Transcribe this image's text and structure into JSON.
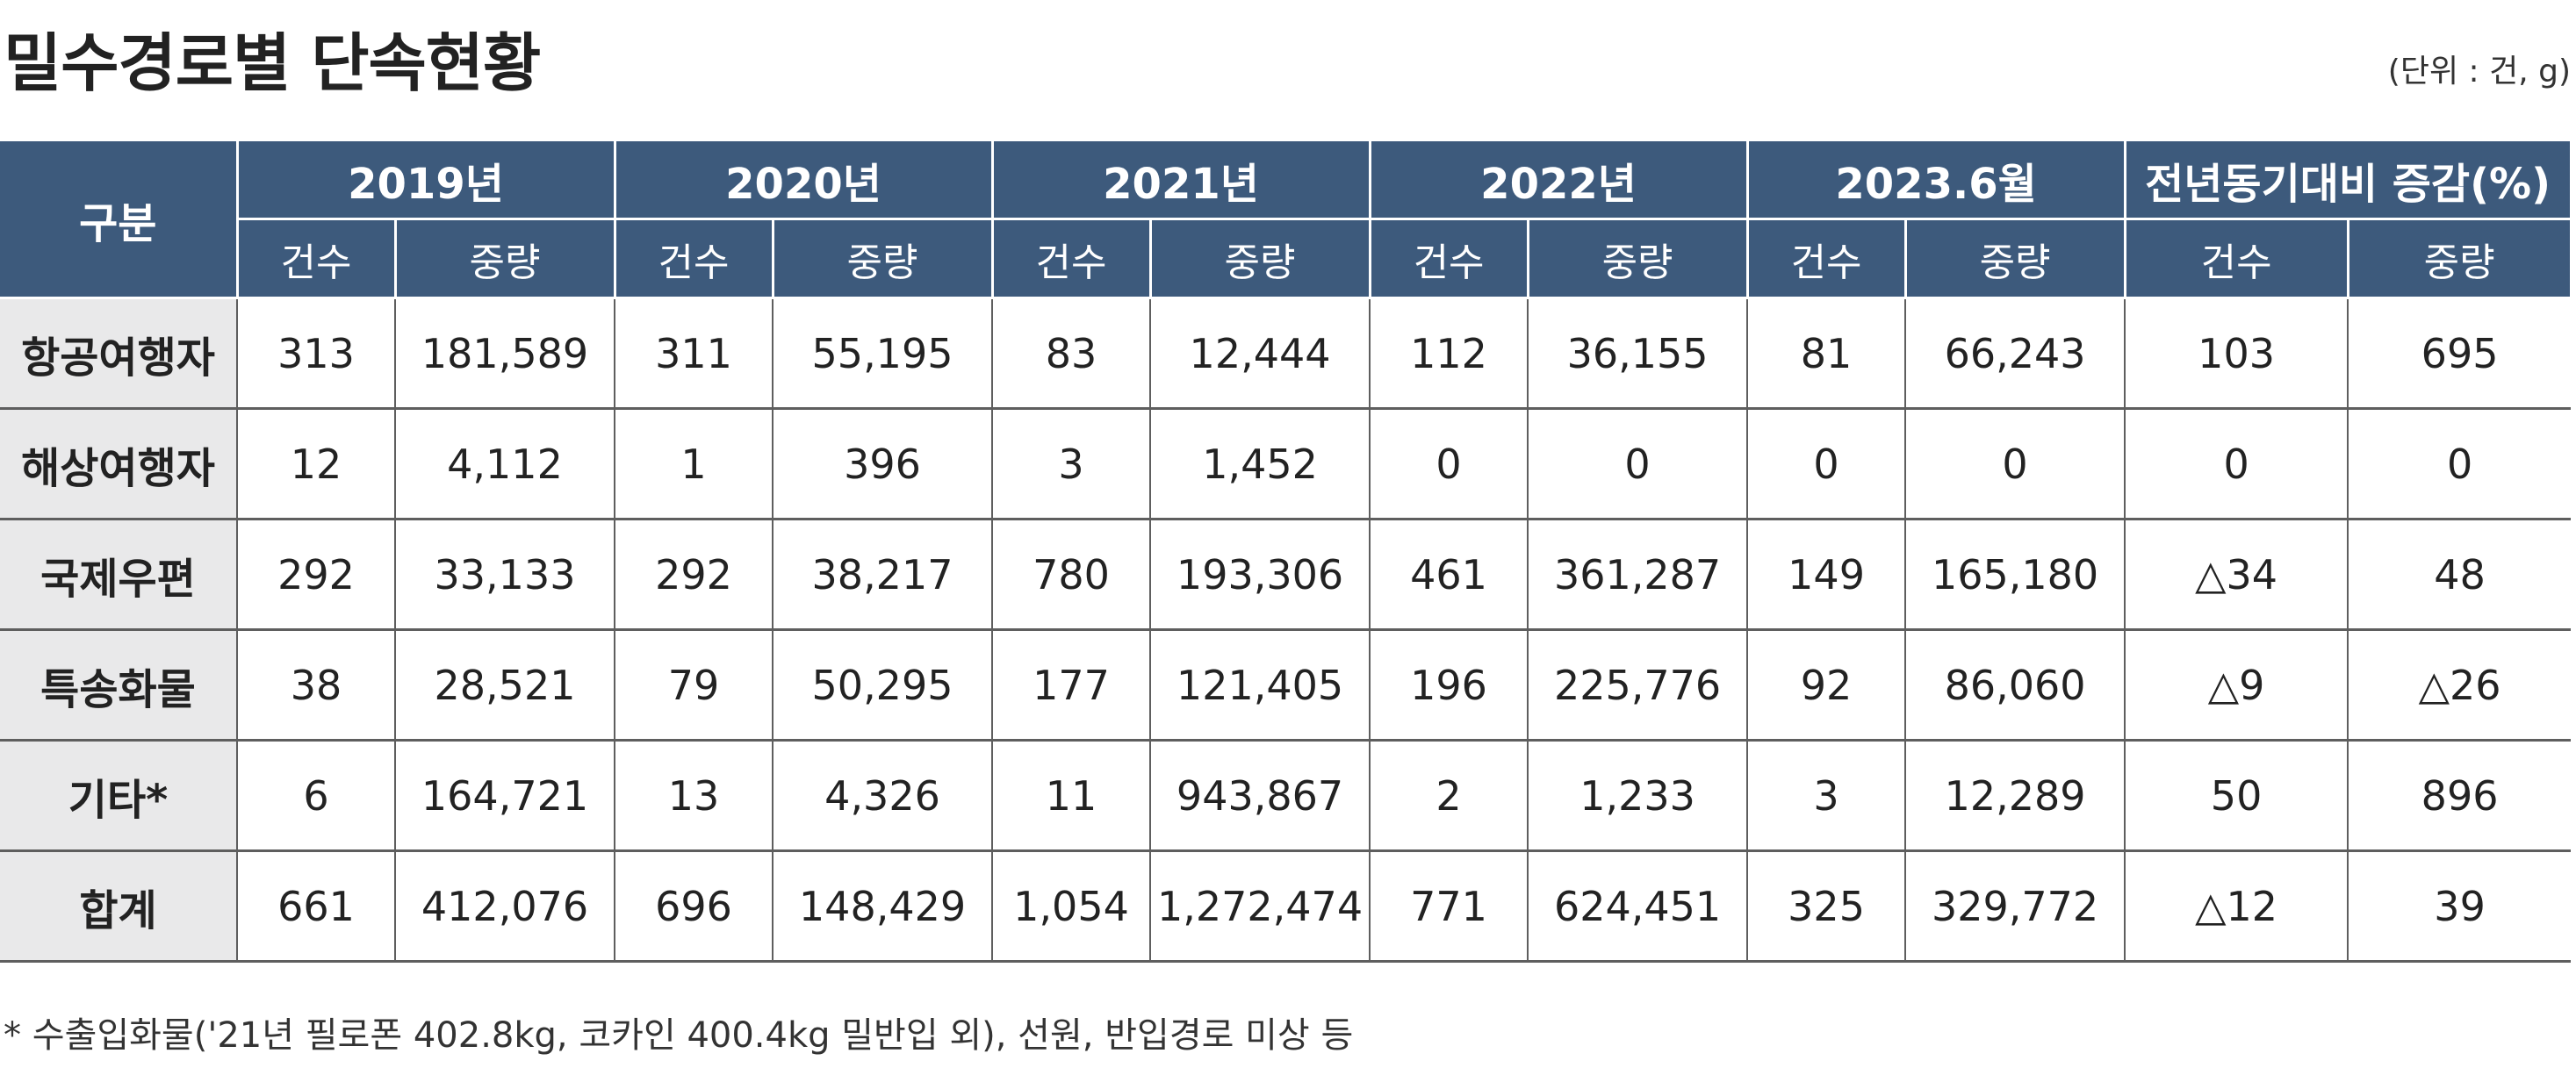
{
  "title": "밀수경로별 단속현황",
  "unit": "(단위 : 건, g)",
  "table": {
    "corner_label": "구분",
    "periods": [
      "2019년",
      "2020년",
      "2021년",
      "2022년",
      "2023.6월",
      "전년동기대비 증감(%)"
    ],
    "sub_headers": [
      "건수",
      "중량",
      "건수",
      "중량",
      "건수",
      "중량",
      "건수",
      "중량",
      "건수",
      "중량",
      "건수",
      "중량"
    ],
    "rows": [
      {
        "label": "항공여행자",
        "cells": [
          "313",
          "181,589",
          "311",
          "55,195",
          "83",
          "12,444",
          "112",
          "36,155",
          "81",
          "66,243",
          "103",
          "695"
        ]
      },
      {
        "label": "해상여행자",
        "cells": [
          "12",
          "4,112",
          "1",
          "396",
          "3",
          "1,452",
          "0",
          "0",
          "0",
          "0",
          "0",
          "0"
        ]
      },
      {
        "label": "국제우편",
        "cells": [
          "292",
          "33,133",
          "292",
          "38,217",
          "780",
          "193,306",
          "461",
          "361,287",
          "149",
          "165,180",
          "△34",
          "48"
        ]
      },
      {
        "label": "특송화물",
        "cells": [
          "38",
          "28,521",
          "79",
          "50,295",
          "177",
          "121,405",
          "196",
          "225,776",
          "92",
          "86,060",
          "△9",
          "△26"
        ]
      },
      {
        "label": "기타*",
        "cells": [
          "6",
          "164,721",
          "13",
          "4,326",
          "11",
          "943,867",
          "2",
          "1,233",
          "3",
          "12,289",
          "50",
          "896"
        ]
      },
      {
        "label": "합계",
        "cells": [
          "661",
          "412,076",
          "696",
          "148,429",
          "1,054",
          "1,272,474",
          "771",
          "624,451",
          "325",
          "329,772",
          "△12",
          "39"
        ]
      }
    ]
  },
  "footnote": "* 수출입화물('21년 필로폰 402.8kg, 코카인 400.4kg 밀반입 외), 선원, 반입경로 미상 등",
  "colors": {
    "header_bg": "#3d5a7c",
    "rowhead_bg": "#e9e9ea"
  }
}
